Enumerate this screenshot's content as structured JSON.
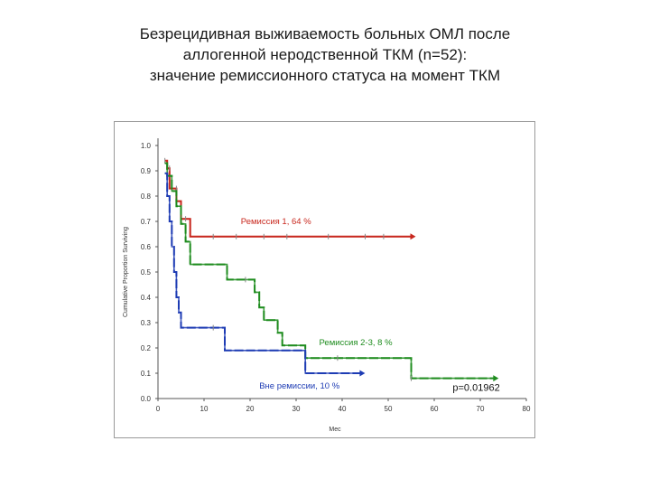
{
  "title_lines": [
    "Безрецидивная выживаемость больных ОМЛ после",
    "аллогенной  неродственной ТКМ (n=52):",
    "значение ремиссионного статуса на момент ТКМ"
  ],
  "chart_data": {
    "type": "line",
    "xlabel": "Мес",
    "ylabel": "Cumulative Proportion Surviving",
    "xlim": [
      0,
      80
    ],
    "ylim": [
      0,
      1.0
    ],
    "xticks": [
      "0",
      "10",
      "20",
      "30",
      "40",
      "50",
      "60",
      "70",
      "80"
    ],
    "yticks": [
      "0.0",
      "0.1",
      "0.2",
      "0.3",
      "0.4",
      "0.5",
      "0.6",
      "0.7",
      "0.8",
      "0.9",
      "1.0"
    ],
    "grid": false,
    "series": [
      {
        "name": "Ремиссия 1, 64 %",
        "color": "#c8281e",
        "points": [
          [
            1.5,
            0.94
          ],
          [
            2,
            0.94
          ],
          [
            2,
            0.91
          ],
          [
            2.5,
            0.91
          ],
          [
            2.5,
            0.83
          ],
          [
            4,
            0.83
          ],
          [
            4,
            0.78
          ],
          [
            5,
            0.78
          ],
          [
            5,
            0.71
          ],
          [
            7,
            0.71
          ],
          [
            7,
            0.64
          ],
          [
            55,
            0.64
          ]
        ],
        "censors": [
          [
            1.5,
            0.94
          ],
          [
            2.5,
            0.91
          ],
          [
            4,
            0.83
          ],
          [
            6,
            0.71
          ],
          [
            12,
            0.64
          ],
          [
            17,
            0.64
          ],
          [
            23,
            0.64
          ],
          [
            28,
            0.64
          ],
          [
            37,
            0.64
          ],
          [
            45,
            0.64
          ],
          [
            49,
            0.64
          ]
        ],
        "end_arrow": true
      },
      {
        "name": "Ремиссия 2-3, 8 %",
        "color": "#1e8c1e",
        "points": [
          [
            1.5,
            0.93
          ],
          [
            2,
            0.93
          ],
          [
            2,
            0.88
          ],
          [
            3,
            0.88
          ],
          [
            3,
            0.82
          ],
          [
            4,
            0.82
          ],
          [
            4,
            0.76
          ],
          [
            5,
            0.76
          ],
          [
            5,
            0.69
          ],
          [
            6,
            0.69
          ],
          [
            6,
            0.62
          ],
          [
            7,
            0.62
          ],
          [
            7,
            0.53
          ],
          [
            15,
            0.53
          ],
          [
            15,
            0.47
          ],
          [
            21,
            0.47
          ],
          [
            21,
            0.42
          ],
          [
            22,
            0.42
          ],
          [
            22,
            0.36
          ],
          [
            23,
            0.36
          ],
          [
            23,
            0.31
          ],
          [
            26,
            0.31
          ],
          [
            26,
            0.26
          ],
          [
            27,
            0.26
          ],
          [
            27,
            0.21
          ],
          [
            32,
            0.21
          ],
          [
            32,
            0.16
          ],
          [
            55,
            0.16
          ],
          [
            55,
            0.08
          ],
          [
            73,
            0.08
          ]
        ],
        "censors": [
          [
            19,
            0.47
          ],
          [
            39,
            0.16
          ],
          [
            55,
            0.08
          ]
        ],
        "end_arrow": true
      },
      {
        "name": "Вне ремиссии, 10 %",
        "color": "#1e3cb4",
        "points": [
          [
            1.5,
            0.89
          ],
          [
            2,
            0.89
          ],
          [
            2,
            0.8
          ],
          [
            2.5,
            0.8
          ],
          [
            2.5,
            0.7
          ],
          [
            3,
            0.7
          ],
          [
            3,
            0.6
          ],
          [
            3.5,
            0.6
          ],
          [
            3.5,
            0.5
          ],
          [
            4,
            0.5
          ],
          [
            4,
            0.4
          ],
          [
            4.5,
            0.4
          ],
          [
            4.5,
            0.34
          ],
          [
            5,
            0.34
          ],
          [
            5,
            0.28
          ],
          [
            14.5,
            0.28
          ],
          [
            14.5,
            0.19
          ],
          [
            32,
            0.19
          ],
          [
            32,
            0.1
          ],
          [
            44,
            0.1
          ]
        ],
        "censors": [
          [
            12,
            0.28
          ]
        ],
        "end_arrow": true
      }
    ],
    "annotations": [
      {
        "text": "Ремиссия 1, 64 %",
        "color": "#c8281e",
        "x": 18,
        "y": 0.69
      },
      {
        "text": "Ремиссия 2-3, 8 %",
        "color": "#1e8c1e",
        "x": 35,
        "y": 0.21
      },
      {
        "text": "Вне ремиссии, 10 %",
        "color": "#1e3cb4",
        "x": 22,
        "y": 0.04
      },
      {
        "text": "p=0.01962",
        "color": "#111111",
        "x": 64,
        "y": 0.03
      }
    ]
  }
}
